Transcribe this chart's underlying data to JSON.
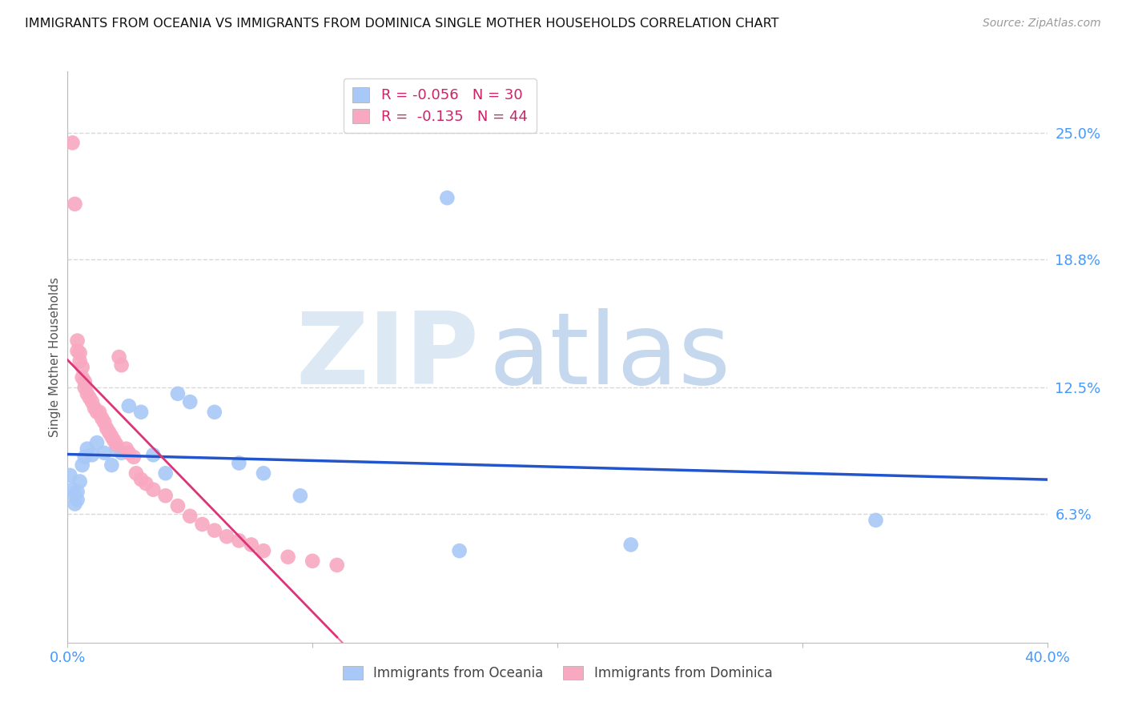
{
  "title": "IMMIGRANTS FROM OCEANIA VS IMMIGRANTS FROM DOMINICA SINGLE MOTHER HOUSEHOLDS CORRELATION CHART",
  "source": "Source: ZipAtlas.com",
  "ylabel": "Single Mother Households",
  "xlim": [
    0.0,
    0.4
  ],
  "ylim": [
    0.0,
    0.28
  ],
  "yticks": [
    0.063,
    0.125,
    0.188,
    0.25
  ],
  "ytick_labels": [
    "6.3%",
    "12.5%",
    "18.8%",
    "25.0%"
  ],
  "xtick_labels": [
    "0.0%",
    "40.0%"
  ],
  "xtick_positions": [
    0.0,
    0.4
  ],
  "grid_color": "#d8d8d8",
  "bg_color": "#ffffff",
  "legend_R_oceania": "-0.056",
  "legend_N_oceania": "30",
  "legend_R_dominica": "-0.135",
  "legend_N_dominica": "44",
  "oceania_color": "#a8c8f8",
  "dominica_color": "#f8a8c0",
  "oceania_line_color": "#2255cc",
  "dominica_line_color": "#dd3377",
  "tick_color": "#4499ff",
  "oceania_x": [
    0.001,
    0.002,
    0.003,
    0.003,
    0.004,
    0.004,
    0.005,
    0.006,
    0.007,
    0.008,
    0.01,
    0.012,
    0.015,
    0.018,
    0.02,
    0.022,
    0.025,
    0.03,
    0.035,
    0.04,
    0.045,
    0.05,
    0.06,
    0.07,
    0.08,
    0.095,
    0.155,
    0.16,
    0.23,
    0.33
  ],
  "oceania_y": [
    0.082,
    0.075,
    0.072,
    0.068,
    0.074,
    0.07,
    0.079,
    0.087,
    0.091,
    0.095,
    0.092,
    0.098,
    0.093,
    0.087,
    0.095,
    0.093,
    0.116,
    0.113,
    0.092,
    0.083,
    0.122,
    0.118,
    0.113,
    0.088,
    0.083,
    0.072,
    0.218,
    0.045,
    0.048,
    0.06
  ],
  "dominica_x": [
    0.002,
    0.003,
    0.004,
    0.004,
    0.005,
    0.005,
    0.006,
    0.006,
    0.007,
    0.007,
    0.008,
    0.009,
    0.01,
    0.011,
    0.012,
    0.013,
    0.014,
    0.015,
    0.016,
    0.017,
    0.018,
    0.019,
    0.02,
    0.021,
    0.022,
    0.024,
    0.025,
    0.027,
    0.028,
    0.03,
    0.032,
    0.035,
    0.04,
    0.045,
    0.05,
    0.055,
    0.06,
    0.065,
    0.07,
    0.075,
    0.08,
    0.09,
    0.1,
    0.11
  ],
  "dominica_y": [
    0.245,
    0.215,
    0.148,
    0.143,
    0.142,
    0.138,
    0.135,
    0.13,
    0.128,
    0.125,
    0.122,
    0.12,
    0.118,
    0.115,
    0.113,
    0.113,
    0.11,
    0.108,
    0.105,
    0.103,
    0.101,
    0.099,
    0.097,
    0.14,
    0.136,
    0.095,
    0.093,
    0.091,
    0.083,
    0.08,
    0.078,
    0.075,
    0.072,
    0.067,
    0.062,
    0.058,
    0.055,
    0.052,
    0.05,
    0.048,
    0.045,
    0.042,
    0.04,
    0.038
  ]
}
